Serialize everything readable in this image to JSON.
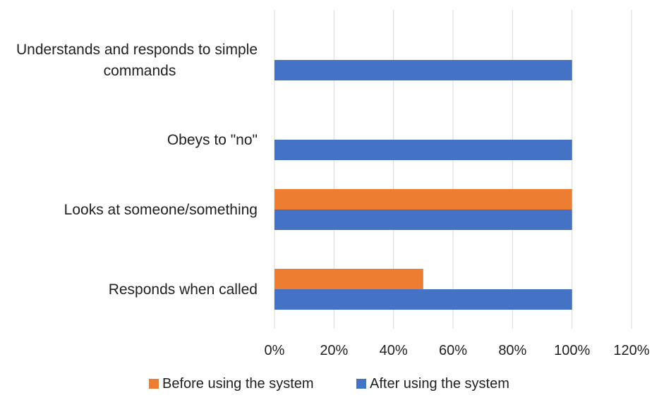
{
  "chart_data": {
    "type": "bar",
    "orientation": "horizontal",
    "categories": [
      [
        "Understands and responds to simple",
        "commands"
      ],
      [
        "Obeys to \"no\""
      ],
      [
        "Looks at someone/something"
      ],
      [
        "Responds when called"
      ]
    ],
    "series": [
      {
        "name": "Before using the system",
        "color": "#ED7D31",
        "values": [
          0,
          0,
          1.0,
          0.5
        ]
      },
      {
        "name": "After using the system",
        "color": "#4472C4",
        "values": [
          1.0,
          1.0,
          1.0,
          1.0
        ]
      }
    ],
    "xlim": [
      0,
      1.2
    ],
    "xticks": [
      "0%",
      "20%",
      "40%",
      "60%",
      "80%",
      "100%",
      "120%"
    ],
    "grid": true,
    "legend_position": "bottom",
    "title": "",
    "xlabel": "",
    "ylabel": ""
  }
}
